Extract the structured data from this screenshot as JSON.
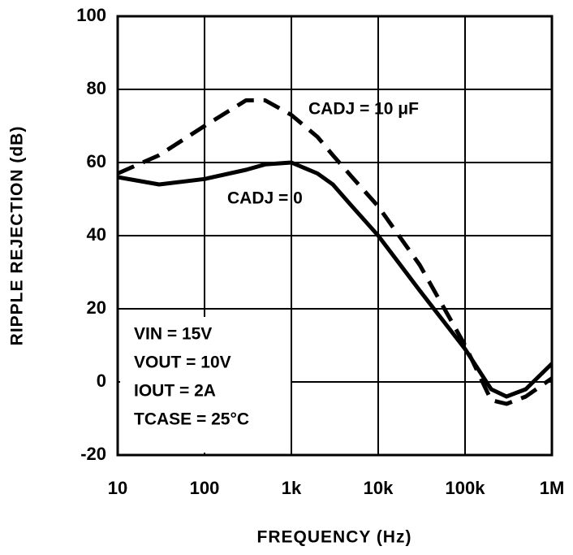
{
  "chart_data": {
    "type": "line",
    "x_label": "FREQUENCY (Hz)",
    "y_label": "RIPPLE REJECTION (dB)",
    "log_x": true,
    "grid": true,
    "x": [
      10,
      30,
      100,
      300,
      500,
      1000,
      2000,
      3000,
      5000,
      10000,
      30000,
      100000,
      200000,
      300000,
      500000,
      1000000
    ],
    "series": [
      {
        "name": "CADJ = 0",
        "color": "#000000",
        "dash": false,
        "values": [
          56,
          54,
          55.5,
          58,
          59.5,
          60,
          57,
          54,
          48,
          40,
          25,
          9,
          -2,
          -4,
          -2,
          5
        ]
      },
      {
        "name": "CADJ = 10 μF",
        "color": "#000000",
        "dash": true,
        "values": [
          57,
          62,
          70,
          77,
          77,
          73,
          67,
          62,
          56,
          48,
          32,
          10,
          -5,
          -6,
          -4,
          1
        ]
      }
    ],
    "xlim": [
      10,
      1000000
    ],
    "ylim": [
      -20,
      100
    ],
    "xticks": [
      10,
      100,
      {
        "value": 1000,
        "label": "1k"
      },
      {
        "value": 10000,
        "label": "10k"
      },
      {
        "value": 100000,
        "label": "100k"
      },
      {
        "value": 1000000,
        "label": "1M"
      }
    ],
    "yticks": [
      -20,
      0,
      20,
      40,
      60,
      80,
      100
    ],
    "annotations": [
      "VIN = 15V",
      "VOUT = 10V",
      "IOUT = 2A",
      "TCASE = 25°C"
    ]
  }
}
